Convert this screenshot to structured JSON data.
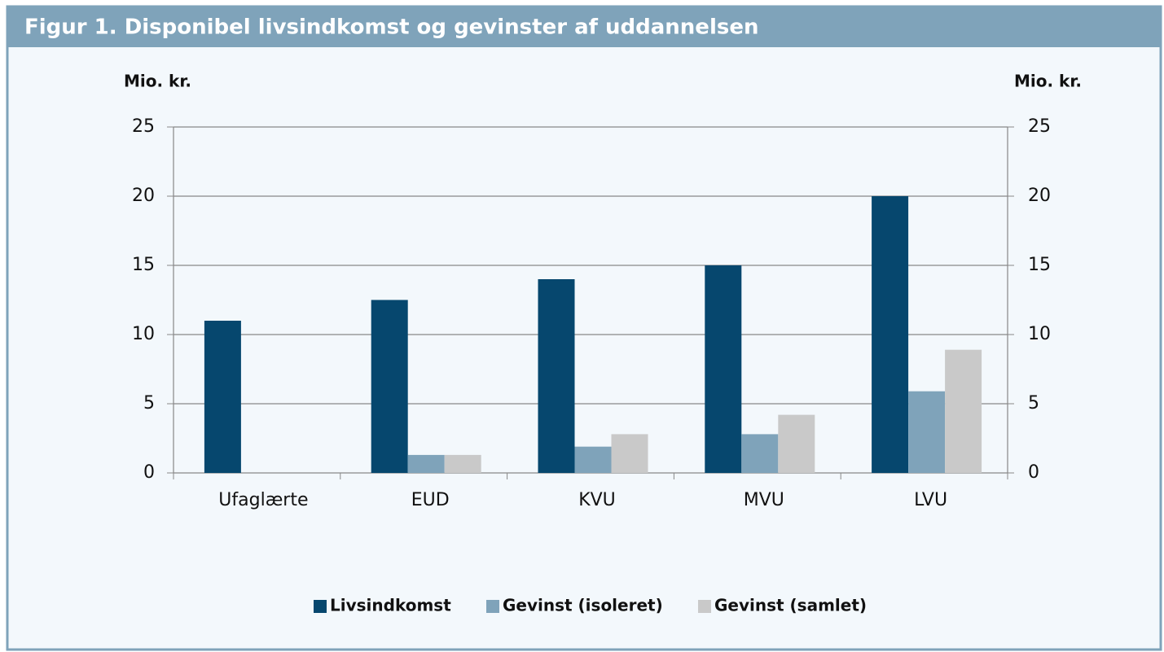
{
  "chart_data": {
    "type": "bar",
    "title": "Figur 1. Disponibel livsindkomst og gevinster af uddannelsen",
    "y_label": "Mio. kr.",
    "y2_label": "Mio. kr.",
    "categories": [
      "Ufaglærte",
      "EUD",
      "KVU",
      "MVU",
      "LVU"
    ],
    "series": [
      {
        "name": "Livsindkomst",
        "color": "#06476e",
        "values": [
          11,
          12.5,
          14,
          15,
          20
        ]
      },
      {
        "name": "Gevinst (isoleret)",
        "color": "#7fa3ba",
        "values": [
          0,
          1.3,
          1.9,
          2.8,
          5.9
        ]
      },
      {
        "name": "Gevinst (samlet)",
        "color": "#c9c9c9",
        "values": [
          0,
          1.3,
          2.8,
          4.2,
          8.9
        ]
      }
    ],
    "ylim": [
      0,
      25
    ],
    "yticks": [
      0,
      5,
      10,
      15,
      20,
      25
    ],
    "y2lim": [
      0,
      25
    ],
    "y2ticks": [
      0,
      5,
      10,
      15,
      20,
      25
    ],
    "grid": true,
    "legend": "bottom"
  }
}
